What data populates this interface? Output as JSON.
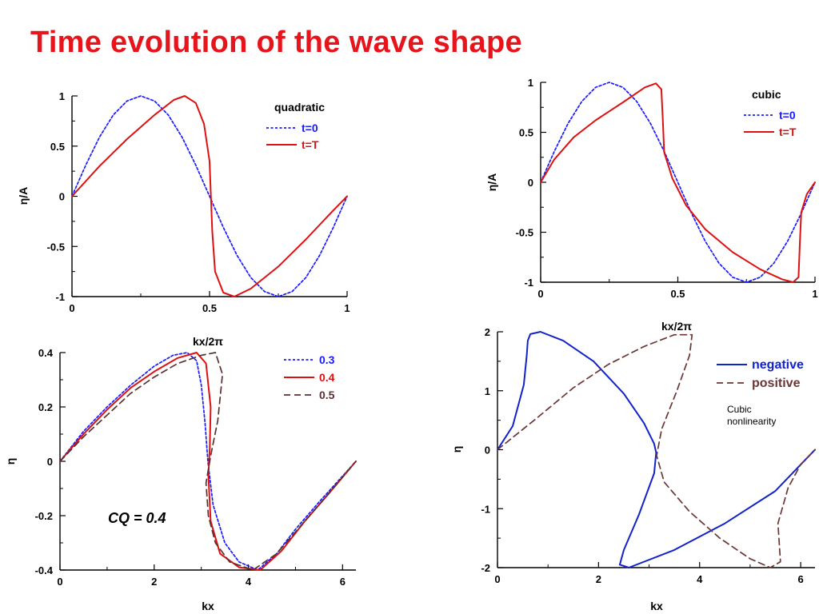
{
  "slide": {
    "title": "Time evolution of the wave shape",
    "title_color": "#e8141c"
  },
  "chart_data": [
    {
      "type": "line",
      "xlim": [
        0,
        1
      ],
      "ylim": [
        -1,
        1
      ],
      "xticks": [
        0,
        0.5,
        1
      ],
      "yticks": [
        -1,
        -0.5,
        0,
        0.5,
        1
      ],
      "xtick_labels": [
        "0",
        "0.5",
        "1"
      ],
      "ytick_labels": [
        "-1",
        "-0.5",
        "0",
        "0.5",
        "1"
      ],
      "xlabel": "kx/2π",
      "ylabel": "η/A",
      "legend_title": "quadratic",
      "legend_position": "top-right",
      "grid": false,
      "series": [
        {
          "name": "t=0",
          "color": "#1a1aff",
          "dash": "dotted",
          "x": [
            0,
            0.05,
            0.1,
            0.15,
            0.2,
            0.25,
            0.3,
            0.35,
            0.4,
            0.45,
            0.5,
            0.55,
            0.6,
            0.65,
            0.7,
            0.75,
            0.8,
            0.85,
            0.9,
            0.95,
            1
          ],
          "y": [
            0,
            0.31,
            0.59,
            0.81,
            0.95,
            1,
            0.95,
            0.81,
            0.59,
            0.31,
            0,
            -0.31,
            -0.59,
            -0.81,
            -0.95,
            -1,
            -0.95,
            -0.81,
            -0.59,
            -0.31,
            0
          ]
        },
        {
          "name": "t=T",
          "color": "#dd1111",
          "dash": "solid",
          "x": [
            0,
            0.1,
            0.2,
            0.3,
            0.37,
            0.41,
            0.45,
            0.48,
            0.5,
            0.505,
            0.51,
            0.52,
            0.55,
            0.59,
            0.65,
            0.75,
            0.85,
            0.95,
            1
          ],
          "y": [
            0,
            0.3,
            0.57,
            0.81,
            0.96,
            1,
            0.93,
            0.72,
            0.35,
            0,
            -0.35,
            -0.75,
            -0.96,
            -1,
            -0.92,
            -0.7,
            -0.43,
            -0.14,
            0
          ]
        }
      ]
    },
    {
      "type": "line",
      "xlim": [
        0,
        1
      ],
      "ylim": [
        -1,
        1
      ],
      "xticks": [
        0,
        0.5,
        1
      ],
      "yticks": [
        -1,
        -0.5,
        0,
        0.5,
        1
      ],
      "xtick_labels": [
        "0",
        "0.5",
        "1"
      ],
      "ytick_labels": [
        "-1",
        "-0.5",
        "0",
        "0.5",
        "1"
      ],
      "xlabel": "kx/2π",
      "ylabel": "η/A",
      "legend_title": "cubic",
      "legend_position": "top-right",
      "grid": false,
      "series": [
        {
          "name": "t=0",
          "color": "#1a1aff",
          "dash": "dotted",
          "x": [
            0,
            0.05,
            0.1,
            0.15,
            0.2,
            0.25,
            0.3,
            0.35,
            0.4,
            0.45,
            0.5,
            0.55,
            0.6,
            0.65,
            0.7,
            0.75,
            0.8,
            0.85,
            0.9,
            0.95,
            1
          ],
          "y": [
            0,
            0.31,
            0.59,
            0.81,
            0.95,
            1,
            0.95,
            0.81,
            0.59,
            0.31,
            0,
            -0.31,
            -0.59,
            -0.81,
            -0.95,
            -1,
            -0.95,
            -0.81,
            -0.59,
            -0.31,
            0
          ]
        },
        {
          "name": "t=T",
          "color": "#dd1111",
          "dash": "solid",
          "x": [
            0,
            0.05,
            0.12,
            0.2,
            0.3,
            0.38,
            0.42,
            0.44,
            0.445,
            0.45,
            0.48,
            0.53,
            0.6,
            0.7,
            0.8,
            0.88,
            0.92,
            0.94,
            0.945,
            0.95,
            0.97,
            1
          ],
          "y": [
            0,
            0.23,
            0.45,
            0.62,
            0.8,
            0.95,
            0.99,
            0.93,
            0.65,
            0.3,
            0.04,
            -0.23,
            -0.47,
            -0.7,
            -0.87,
            -0.97,
            -1,
            -0.95,
            -0.6,
            -0.3,
            -0.12,
            0
          ]
        }
      ]
    },
    {
      "type": "line",
      "xlim": [
        0,
        6.2832
      ],
      "ylim": [
        -0.4,
        0.4
      ],
      "xticks": [
        0,
        2,
        4,
        6
      ],
      "yticks": [
        -0.4,
        -0.2,
        0,
        0.2,
        0.4
      ],
      "xtick_labels": [
        "0",
        "2",
        "4",
        "6"
      ],
      "ytick_labels": [
        "-0.4",
        "-0.2",
        "0",
        "0.2",
        "0.4"
      ],
      "xlabel": "kx",
      "ylabel": "η",
      "annotation": "CQ = 0.4",
      "legend_position": "top-right",
      "grid": false,
      "series": [
        {
          "name": "0.3",
          "color": "#1a1aff",
          "dash": "dotted",
          "x": [
            0,
            0.5,
            1,
            1.5,
            2,
            2.4,
            2.7,
            2.9,
            3,
            3.08,
            3.14,
            3.25,
            3.5,
            3.8,
            4.2,
            4.6,
            5,
            5.5,
            6.2832
          ],
          "y": [
            0,
            0.11,
            0.2,
            0.28,
            0.35,
            0.39,
            0.4,
            0.37,
            0.28,
            0.14,
            0,
            -0.16,
            -0.3,
            -0.37,
            -0.4,
            -0.34,
            -0.25,
            -0.15,
            0
          ]
        },
        {
          "name": "0.4",
          "color": "#dd1111",
          "dash": "solid",
          "x": [
            0,
            0.5,
            1,
            1.5,
            2,
            2.5,
            2.9,
            3.1,
            3.2,
            3.18,
            3.15,
            3.2,
            3.4,
            3.8,
            4.25,
            4.7,
            5.2,
            5.7,
            6.2832
          ],
          "y": [
            0,
            0.1,
            0.19,
            0.27,
            0.33,
            0.38,
            0.4,
            0.36,
            0.2,
            0.05,
            -0.05,
            -0.22,
            -0.34,
            -0.39,
            -0.4,
            -0.33,
            -0.22,
            -0.12,
            0
          ]
        },
        {
          "name": "0.5",
          "color": "#5a3030",
          "dash": "dashed",
          "x": [
            0,
            0.5,
            1,
            1.5,
            2,
            2.5,
            3,
            3.3,
            3.45,
            3.35,
            3.2,
            3.1,
            3.15,
            3.3,
            3.6,
            4.1,
            4.6,
            5.2,
            5.8,
            6.2832
          ],
          "y": [
            0,
            0.09,
            0.17,
            0.25,
            0.31,
            0.36,
            0.39,
            0.4,
            0.32,
            0.15,
            0.02,
            -0.08,
            -0.2,
            -0.3,
            -0.37,
            -0.4,
            -0.34,
            -0.22,
            -0.1,
            0
          ]
        }
      ]
    },
    {
      "type": "line",
      "xlim": [
        0,
        6.2832
      ],
      "ylim": [
        -2,
        2
      ],
      "xticks": [
        0,
        2,
        4,
        6
      ],
      "yticks": [
        -2,
        -1,
        0,
        1,
        2
      ],
      "xtick_labels": [
        "0",
        "2",
        "4",
        "6"
      ],
      "ytick_labels": [
        "-2",
        "-1",
        "0",
        "1",
        "2"
      ],
      "xlabel": "kx",
      "ylabel": "η",
      "annotation": "Cubic\nnonlinearity",
      "legend_position": "top-right",
      "grid": false,
      "series": [
        {
          "name": "negative",
          "color": "#1122cc",
          "dash": "solid",
          "x": [
            0,
            0.3,
            0.52,
            0.58,
            0.6,
            0.65,
            0.85,
            1.3,
            1.9,
            2.5,
            2.9,
            3.1,
            3.14,
            3.1,
            2.8,
            2.5,
            2.42,
            2.6,
            3.5,
            4.5,
            5.5,
            6.2832
          ],
          "y": [
            0,
            0.4,
            1.1,
            1.6,
            1.85,
            1.96,
            2,
            1.85,
            1.5,
            0.95,
            0.45,
            0.1,
            -0.05,
            -0.4,
            -1.1,
            -1.7,
            -1.95,
            -2,
            -1.7,
            -1.25,
            -0.7,
            0
          ]
        },
        {
          "name": "positive",
          "color": "#6b3535",
          "dash": "dashed",
          "x": [
            0,
            0.8,
            1.5,
            2.2,
            2.9,
            3.5,
            3.85,
            3.8,
            3.55,
            3.25,
            3.15,
            3.3,
            3.8,
            4.4,
            5,
            5.4,
            5.6,
            5.55,
            5.75,
            6,
            6.2832
          ],
          "y": [
            0,
            0.55,
            1.05,
            1.45,
            1.75,
            1.95,
            1.95,
            1.6,
            1.0,
            0.35,
            -0.1,
            -0.55,
            -1.05,
            -1.5,
            -1.85,
            -2,
            -1.9,
            -1.25,
            -0.65,
            -0.25,
            0
          ]
        }
      ]
    }
  ]
}
